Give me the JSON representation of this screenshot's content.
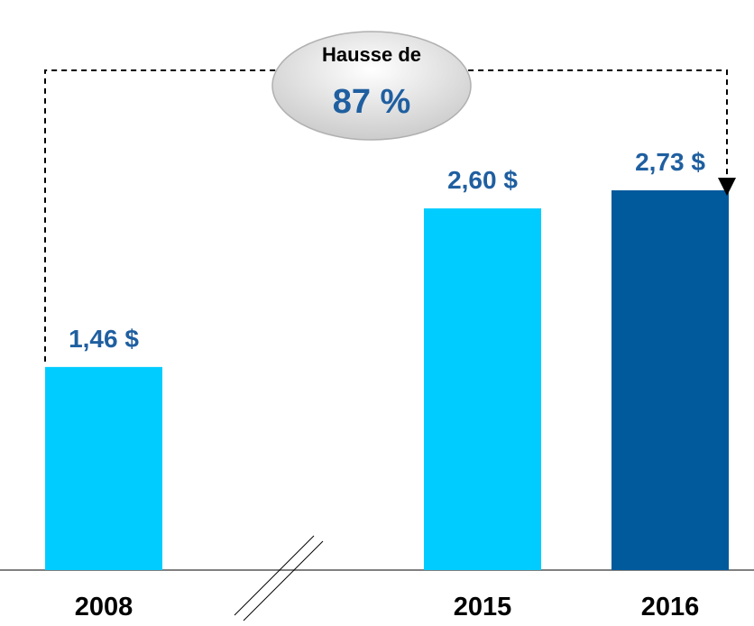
{
  "chart_data": {
    "type": "bar",
    "categories": [
      "2008",
      "2015",
      "2016"
    ],
    "values": [
      1.46,
      2.6,
      2.73
    ],
    "value_labels": [
      "1,46 $",
      "2,60 $",
      "2,73 $"
    ],
    "colors": [
      "#00ccff",
      "#00ccff",
      "#005a9c"
    ],
    "annotation": {
      "line1": "Hausse de",
      "line2": "87 %"
    }
  }
}
